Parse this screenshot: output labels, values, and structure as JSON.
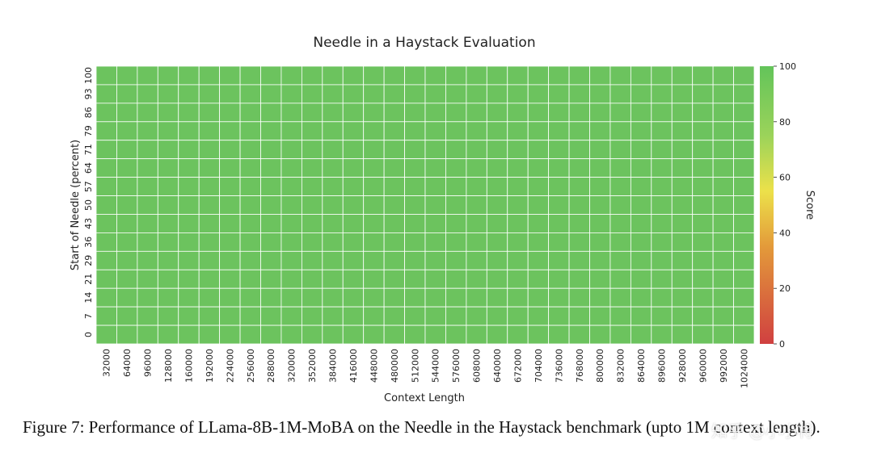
{
  "chart_data": {
    "type": "heatmap",
    "title": "Needle in a Haystack Evaluation",
    "xlabel": "Context Length",
    "ylabel": "Start of Needle (percent)",
    "x": [
      32000,
      64000,
      96000,
      128000,
      160000,
      192000,
      224000,
      256000,
      288000,
      320000,
      352000,
      384000,
      416000,
      448000,
      480000,
      512000,
      544000,
      576000,
      608000,
      640000,
      672000,
      704000,
      736000,
      768000,
      800000,
      832000,
      864000,
      896000,
      928000,
      960000,
      992000,
      1024000
    ],
    "y": [
      100,
      93,
      86,
      79,
      71,
      64,
      57,
      50,
      43,
      36,
      29,
      21,
      14,
      7,
      0
    ],
    "score_all": 100,
    "colorbar": {
      "label": "Score",
      "range": [
        0,
        100
      ],
      "ticks": [
        0,
        20,
        40,
        60,
        80,
        100
      ],
      "colors": [
        "#d64545",
        "#e8c83a",
        "#63c45a"
      ]
    },
    "cell_color": "#6cc35e",
    "grid": true
  },
  "caption": "Figure 7: Performance of LLama-8B-1M-MoBA on the Needle in the Haystack benchmark (upto 1M context length).",
  "watermark": "知乎 @小小将"
}
